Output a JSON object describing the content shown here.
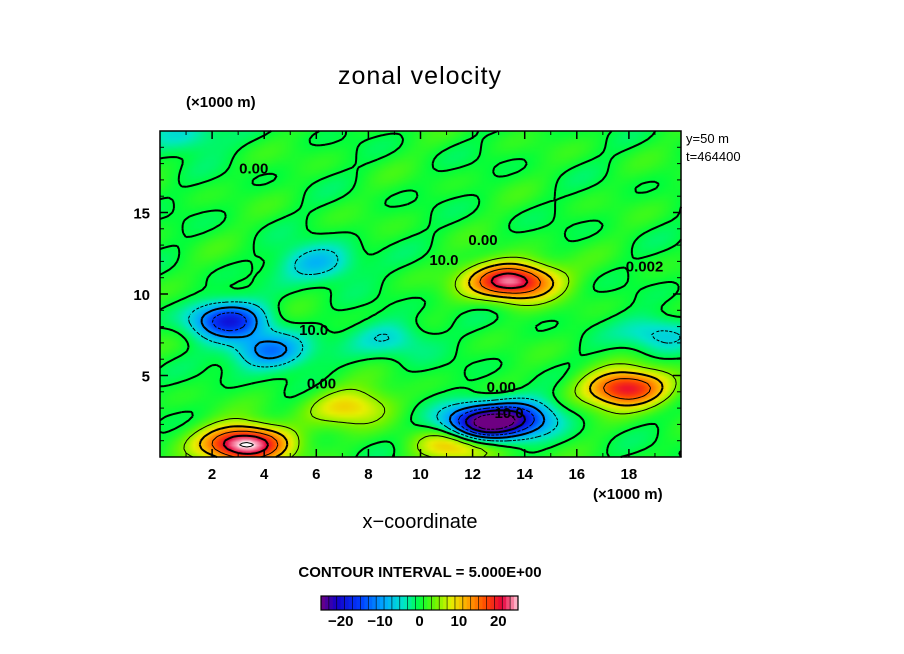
{
  "chart_data": {
    "type": "heatmap",
    "title": "zonal velocity",
    "xlabel": "x−coordinate",
    "x_unit": "(×1000 m)",
    "y_unit": "(×1000 m)",
    "xlim": [
      0,
      20
    ],
    "ylim": [
      0,
      20
    ],
    "x_ticks": [
      2,
      4,
      6,
      8,
      10,
      12,
      14,
      16,
      18
    ],
    "y_ticks": [
      5,
      10,
      15
    ],
    "level_label": "y=50 m",
    "time_label": "t=464400",
    "contour_interval_text": "CONTOUR INTERVAL = 5.000E+00",
    "contour_labels": [
      {
        "text": "0.00",
        "x": 3.6,
        "y": 17.7
      },
      {
        "text": "0.00",
        "x": 12.4,
        "y": 13.3
      },
      {
        "text": "10.0",
        "x": 10.9,
        "y": 12.1
      },
      {
        "text": "0.002",
        "x": 18.6,
        "y": 11.7
      },
      {
        "text": "10.0",
        "x": 5.9,
        "y": 7.8
      },
      {
        "text": "0.00",
        "x": 6.2,
        "y": 4.5
      },
      {
        "text": "0.00",
        "x": 13.1,
        "y": 4.3
      },
      {
        "text": "10.0",
        "x": 13.4,
        "y": 2.7
      }
    ],
    "colorbar": {
      "min": -25,
      "max": 25,
      "ticks": [
        -20,
        -10,
        0,
        10,
        20
      ],
      "tick_labels": [
        "−20",
        "−10",
        "0",
        "10",
        "20"
      ]
    },
    "field_features": [
      {
        "kind": "max",
        "x": 13.5,
        "y": 10.8,
        "value": 24
      },
      {
        "kind": "max",
        "x": 3.3,
        "y": 0.8,
        "value": 26
      },
      {
        "kind": "max",
        "x": 17.9,
        "y": 4.2,
        "value": 20
      },
      {
        "kind": "max",
        "x": 11.5,
        "y": 0.8,
        "value": 12
      },
      {
        "kind": "max",
        "x": 7.3,
        "y": 3.1,
        "value": 9
      },
      {
        "kind": "min",
        "x": 2.6,
        "y": 8.4,
        "value": -18
      },
      {
        "kind": "min",
        "x": 4.2,
        "y": 6.5,
        "value": -13
      },
      {
        "kind": "min",
        "x": 12.3,
        "y": 2.0,
        "value": -27
      },
      {
        "kind": "min",
        "x": 13.8,
        "y": 2.4,
        "value": -15
      },
      {
        "kind": "min",
        "x": 6.1,
        "y": 11.9,
        "value": -9
      },
      {
        "kind": "min",
        "x": 19.2,
        "y": 7.6,
        "value": -7
      },
      {
        "kind": "min",
        "x": 0.8,
        "y": 19.7,
        "value": -6
      },
      {
        "kind": "min",
        "x": 8.9,
        "y": 7.3,
        "value": -6
      }
    ]
  }
}
